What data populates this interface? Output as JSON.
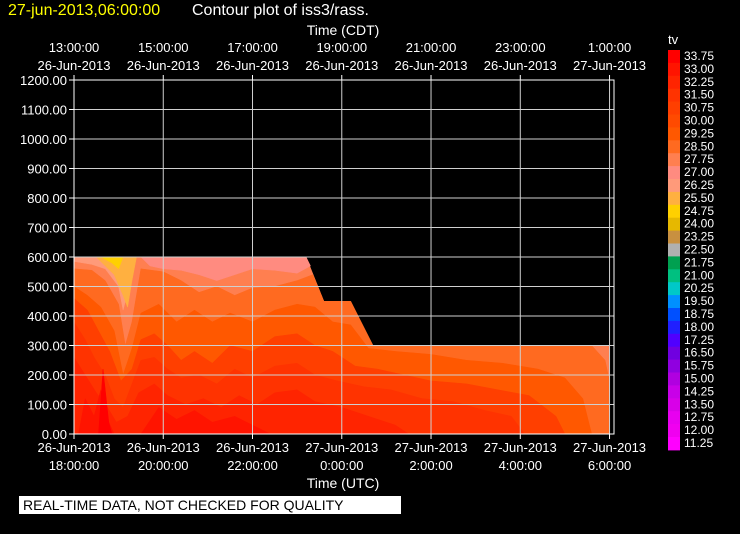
{
  "header": {
    "timestamp": "27-jun-2013,06:00:00",
    "title": "Contour plot of iss3/rass."
  },
  "footer": {
    "notice": "REAL-TIME DATA, NOT CHECKED FOR QUALITY"
  },
  "chart_data": {
    "type": "heatmap",
    "title": "Contour plot of iss3/rass.",
    "variable": "tv",
    "x_top_label": "Time (CDT)",
    "x_bottom_label": "Time (UTC)",
    "x_range_hours": [
      0,
      12.1
    ],
    "ylim": [
      0,
      1200
    ],
    "grid": true,
    "y_ticks": [
      "0.00",
      "100.00",
      "200.00",
      "300.00",
      "400.00",
      "500.00",
      "600.00",
      "700.00",
      "800.00",
      "900.00",
      "1000.00",
      "1100.00",
      "1200.00"
    ],
    "x_bottom_ticks": [
      {
        "time": "18:00:00",
        "date": "26-Jun-2013"
      },
      {
        "time": "20:00:00",
        "date": "26-Jun-2013"
      },
      {
        "time": "22:00:00",
        "date": "26-Jun-2013"
      },
      {
        "time": "0:00:00",
        "date": "27-Jun-2013"
      },
      {
        "time": "2:00:00",
        "date": "27-Jun-2013"
      },
      {
        "time": "4:00:00",
        "date": "27-Jun-2013"
      },
      {
        "time": "6:00:00",
        "date": "27-Jun-2013"
      }
    ],
    "x_top_ticks": [
      {
        "time": "13:00:00",
        "date": "26-Jun-2013"
      },
      {
        "time": "15:00:00",
        "date": "26-Jun-2013"
      },
      {
        "time": "17:00:00",
        "date": "26-Jun-2013"
      },
      {
        "time": "19:00:00",
        "date": "26-Jun-2013"
      },
      {
        "time": "21:00:00",
        "date": "26-Jun-2013"
      },
      {
        "time": "23:00:00",
        "date": "26-Jun-2013"
      },
      {
        "time": "1:00:00",
        "date": "27-Jun-2013"
      }
    ],
    "colorbar": {
      "label": "tv",
      "levels": [
        "33.75",
        "33.00",
        "32.25",
        "31.50",
        "30.75",
        "30.00",
        "29.25",
        "28.50",
        "27.75",
        "27.00",
        "26.25",
        "25.50",
        "24.75",
        "24.00",
        "23.25",
        "22.50",
        "21.75",
        "21.00",
        "20.25",
        "19.50",
        "18.75",
        "18.00",
        "17.25",
        "16.50",
        "15.75",
        "15.00",
        "14.25",
        "13.50",
        "12.75",
        "12.00",
        "11.25"
      ],
      "colors": [
        "#ff0000",
        "#ff1400",
        "#ff2400",
        "#ff3300",
        "#ff3f00",
        "#ff4a00",
        "#ff5800",
        "#ff6a20",
        "#ff7f50",
        "#ff8b80",
        "#ff9a7a",
        "#ffb040",
        "#ffd000",
        "#e6b800",
        "#c89040",
        "#b0b0b0",
        "#00a050",
        "#00c080",
        "#00c8c8",
        "#0090ff",
        "#0050ff",
        "#2020ff",
        "#5000ff",
        "#7000e0",
        "#9000e0",
        "#b000e0",
        "#c800e8",
        "#d800e8",
        "#e800f0",
        "#f000f0",
        "#ff00ff"
      ]
    },
    "outline": [
      [
        0,
        600
      ],
      [
        5.2,
        600
      ],
      [
        5.6,
        450
      ],
      [
        6.2,
        450
      ],
      [
        6.7,
        300
      ],
      [
        12.0,
        300
      ],
      [
        12.0,
        0
      ],
      [
        0,
        0
      ]
    ],
    "bands": [
      {
        "value": 28.5,
        "color": "#ff7f50",
        "points": [
          [
            0,
            600
          ],
          [
            5.2,
            600
          ],
          [
            5.6,
            450
          ],
          [
            6.2,
            450
          ],
          [
            6.7,
            300
          ],
          [
            12.0,
            300
          ],
          [
            12.0,
            0
          ],
          [
            0,
            0
          ]
        ]
      },
      {
        "value": 27.75,
        "color": "#ff8b80",
        "points": [
          [
            1.5,
            600
          ],
          [
            5.2,
            600
          ],
          [
            5.3,
            570
          ],
          [
            5.0,
            545
          ],
          [
            4.5,
            555
          ],
          [
            4.0,
            560
          ],
          [
            3.6,
            540
          ],
          [
            3.2,
            520
          ],
          [
            2.8,
            540
          ],
          [
            2.4,
            555
          ],
          [
            2.0,
            560
          ],
          [
            1.7,
            570
          ]
        ]
      },
      {
        "value": 26.25,
        "color": "#ff9a7a",
        "points": [
          [
            0,
            600
          ],
          [
            1.2,
            600
          ],
          [
            1.3,
            540
          ],
          [
            1.1,
            420
          ],
          [
            1.0,
            500
          ],
          [
            0.7,
            560
          ],
          [
            0.4,
            575
          ],
          [
            0,
            585
          ]
        ]
      },
      {
        "value": 25.5,
        "color": "#ffb040",
        "points": [
          [
            0.5,
            600
          ],
          [
            1.4,
            600
          ],
          [
            1.3,
            520
          ],
          [
            1.2,
            430
          ],
          [
            1.1,
            470
          ],
          [
            0.9,
            540
          ],
          [
            0.7,
            570
          ]
        ]
      },
      {
        "value": 24.75,
        "color": "#ffd000",
        "points": [
          [
            0.6,
            600
          ],
          [
            1.1,
            600
          ],
          [
            1.0,
            560
          ],
          [
            0.85,
            580
          ]
        ]
      },
      {
        "value": 29.25,
        "color": "#ff6a20",
        "points": [
          [
            0,
            560
          ],
          [
            0.4,
            555
          ],
          [
            0.7,
            520
          ],
          [
            1.0,
            440
          ],
          [
            1.15,
            300
          ],
          [
            1.3,
            380
          ],
          [
            1.5,
            560
          ],
          [
            2.0,
            550
          ],
          [
            2.4,
            520
          ],
          [
            2.8,
            480
          ],
          [
            3.2,
            500
          ],
          [
            3.6,
            470
          ],
          [
            4.0,
            495
          ],
          [
            4.5,
            500
          ],
          [
            5.0,
            520
          ],
          [
            5.35,
            540
          ],
          [
            5.6,
            450
          ],
          [
            6.2,
            450
          ],
          [
            6.7,
            300
          ],
          [
            11.6,
            300
          ],
          [
            11.9,
            250
          ],
          [
            12.0,
            180
          ],
          [
            12.0,
            0
          ],
          [
            0,
            0
          ]
        ]
      },
      {
        "value": 30.0,
        "color": "#ff5800",
        "points": [
          [
            0,
            500
          ],
          [
            0.3,
            470
          ],
          [
            0.6,
            430
          ],
          [
            0.9,
            350
          ],
          [
            1.1,
            200
          ],
          [
            1.3,
            290
          ],
          [
            1.5,
            410
          ],
          [
            1.9,
            440
          ],
          [
            2.3,
            380
          ],
          [
            2.7,
            420
          ],
          [
            3.1,
            380
          ],
          [
            3.5,
            410
          ],
          [
            4.0,
            380
          ],
          [
            4.5,
            420
          ],
          [
            5.0,
            440
          ],
          [
            5.4,
            430
          ],
          [
            5.8,
            380
          ],
          [
            6.2,
            370
          ],
          [
            6.6,
            290
          ],
          [
            7.2,
            280
          ],
          [
            8.0,
            270
          ],
          [
            8.8,
            250
          ],
          [
            9.6,
            240
          ],
          [
            10.4,
            220
          ],
          [
            11.0,
            190
          ],
          [
            11.4,
            120
          ],
          [
            11.6,
            0
          ],
          [
            0,
            0
          ]
        ]
      },
      {
        "value": 30.75,
        "color": "#ff3f00",
        "points": [
          [
            0,
            460
          ],
          [
            0.3,
            420
          ],
          [
            0.55,
            350
          ],
          [
            0.8,
            280
          ],
          [
            1.05,
            180
          ],
          [
            1.3,
            220
          ],
          [
            1.5,
            320
          ],
          [
            1.8,
            340
          ],
          [
            2.1,
            300
          ],
          [
            2.4,
            250
          ],
          [
            2.7,
            280
          ],
          [
            3.1,
            240
          ],
          [
            3.5,
            300
          ],
          [
            4.0,
            280
          ],
          [
            4.5,
            330
          ],
          [
            5.0,
            340
          ],
          [
            5.4,
            300
          ],
          [
            5.8,
            280
          ],
          [
            6.3,
            230
          ],
          [
            6.8,
            220
          ],
          [
            7.4,
            200
          ],
          [
            8.0,
            180
          ],
          [
            8.8,
            170
          ],
          [
            9.5,
            150
          ],
          [
            10.2,
            130
          ],
          [
            10.8,
            60
          ],
          [
            11.0,
            0
          ],
          [
            0,
            0
          ]
        ]
      },
      {
        "value": 31.5,
        "color": "#ff3300",
        "points": [
          [
            0,
            380
          ],
          [
            0.25,
            320
          ],
          [
            0.45,
            260
          ],
          [
            0.7,
            200
          ],
          [
            0.9,
            120
          ],
          [
            1.1,
            90
          ],
          [
            1.3,
            170
          ],
          [
            1.5,
            250
          ],
          [
            1.8,
            260
          ],
          [
            2.1,
            220
          ],
          [
            2.4,
            190
          ],
          [
            2.8,
            200
          ],
          [
            3.2,
            170
          ],
          [
            3.6,
            220
          ],
          [
            4.0,
            190
          ],
          [
            4.5,
            230
          ],
          [
            5.0,
            240
          ],
          [
            5.4,
            200
          ],
          [
            5.9,
            180
          ],
          [
            6.5,
            160
          ],
          [
            7.1,
            150
          ],
          [
            7.8,
            120
          ],
          [
            8.5,
            110
          ],
          [
            9.2,
            80
          ],
          [
            9.8,
            60
          ],
          [
            10.1,
            0
          ],
          [
            0,
            0
          ]
        ]
      },
      {
        "value": 32.25,
        "color": "#ff2400",
        "points": [
          [
            0,
            260
          ],
          [
            0.25,
            200
          ],
          [
            0.5,
            140
          ],
          [
            0.75,
            90
          ],
          [
            0.95,
            40
          ],
          [
            1.2,
            60
          ],
          [
            1.45,
            140
          ],
          [
            1.8,
            170
          ],
          [
            2.1,
            130
          ],
          [
            2.5,
            100
          ],
          [
            2.9,
            120
          ],
          [
            3.3,
            90
          ],
          [
            3.7,
            130
          ],
          [
            4.1,
            100
          ],
          [
            4.5,
            140
          ],
          [
            5.0,
            150
          ],
          [
            5.4,
            110
          ],
          [
            6.0,
            90
          ],
          [
            6.6,
            60
          ],
          [
            7.2,
            30
          ],
          [
            7.5,
            0
          ],
          [
            0,
            0
          ]
        ]
      },
      {
        "value": 33.0,
        "color": "#ff1400",
        "points": [
          [
            0.1,
            0
          ],
          [
            0.25,
            120
          ],
          [
            0.45,
            60
          ],
          [
            0.6,
            150
          ],
          [
            0.75,
            50
          ],
          [
            0.9,
            0
          ]
        ]
      },
      {
        "value": 33.0,
        "color": "#ff1400",
        "points": [
          [
            1.5,
            0
          ],
          [
            1.9,
            90
          ],
          [
            2.3,
            50
          ],
          [
            2.7,
            80
          ],
          [
            3.1,
            40
          ],
          [
            3.6,
            60
          ],
          [
            4.0,
            30
          ],
          [
            4.4,
            0
          ]
        ]
      },
      {
        "value": 33.75,
        "color": "#ff0000",
        "points": [
          [
            0.55,
            0
          ],
          [
            0.65,
            220
          ],
          [
            0.78,
            40
          ],
          [
            0.85,
            0
          ]
        ]
      }
    ]
  }
}
